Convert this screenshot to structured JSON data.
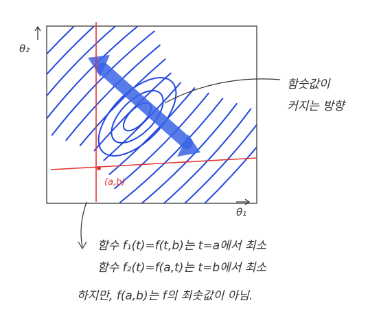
{
  "colors": {
    "ink": "#333333",
    "contour": "#2146e0",
    "gradient_arrow": "#3b64e6",
    "axis_lines": "#e03434",
    "frame": "#555555"
  },
  "axes": {
    "vertical_label": "θ₂",
    "horizontal_label": "θ₁"
  },
  "point_label": "(a,b)",
  "callout": {
    "line1": "함숫값이",
    "line2": "커지는 방향"
  },
  "note": {
    "line1": "함수 f₁(t)=f(t,b)는 t=a에서 최소",
    "line2": "함수 f₂(t)=f(a,t)는 t=b에서 최소",
    "line3": "하지만, f(a,b)는 f의 최솟값이 아님."
  }
}
